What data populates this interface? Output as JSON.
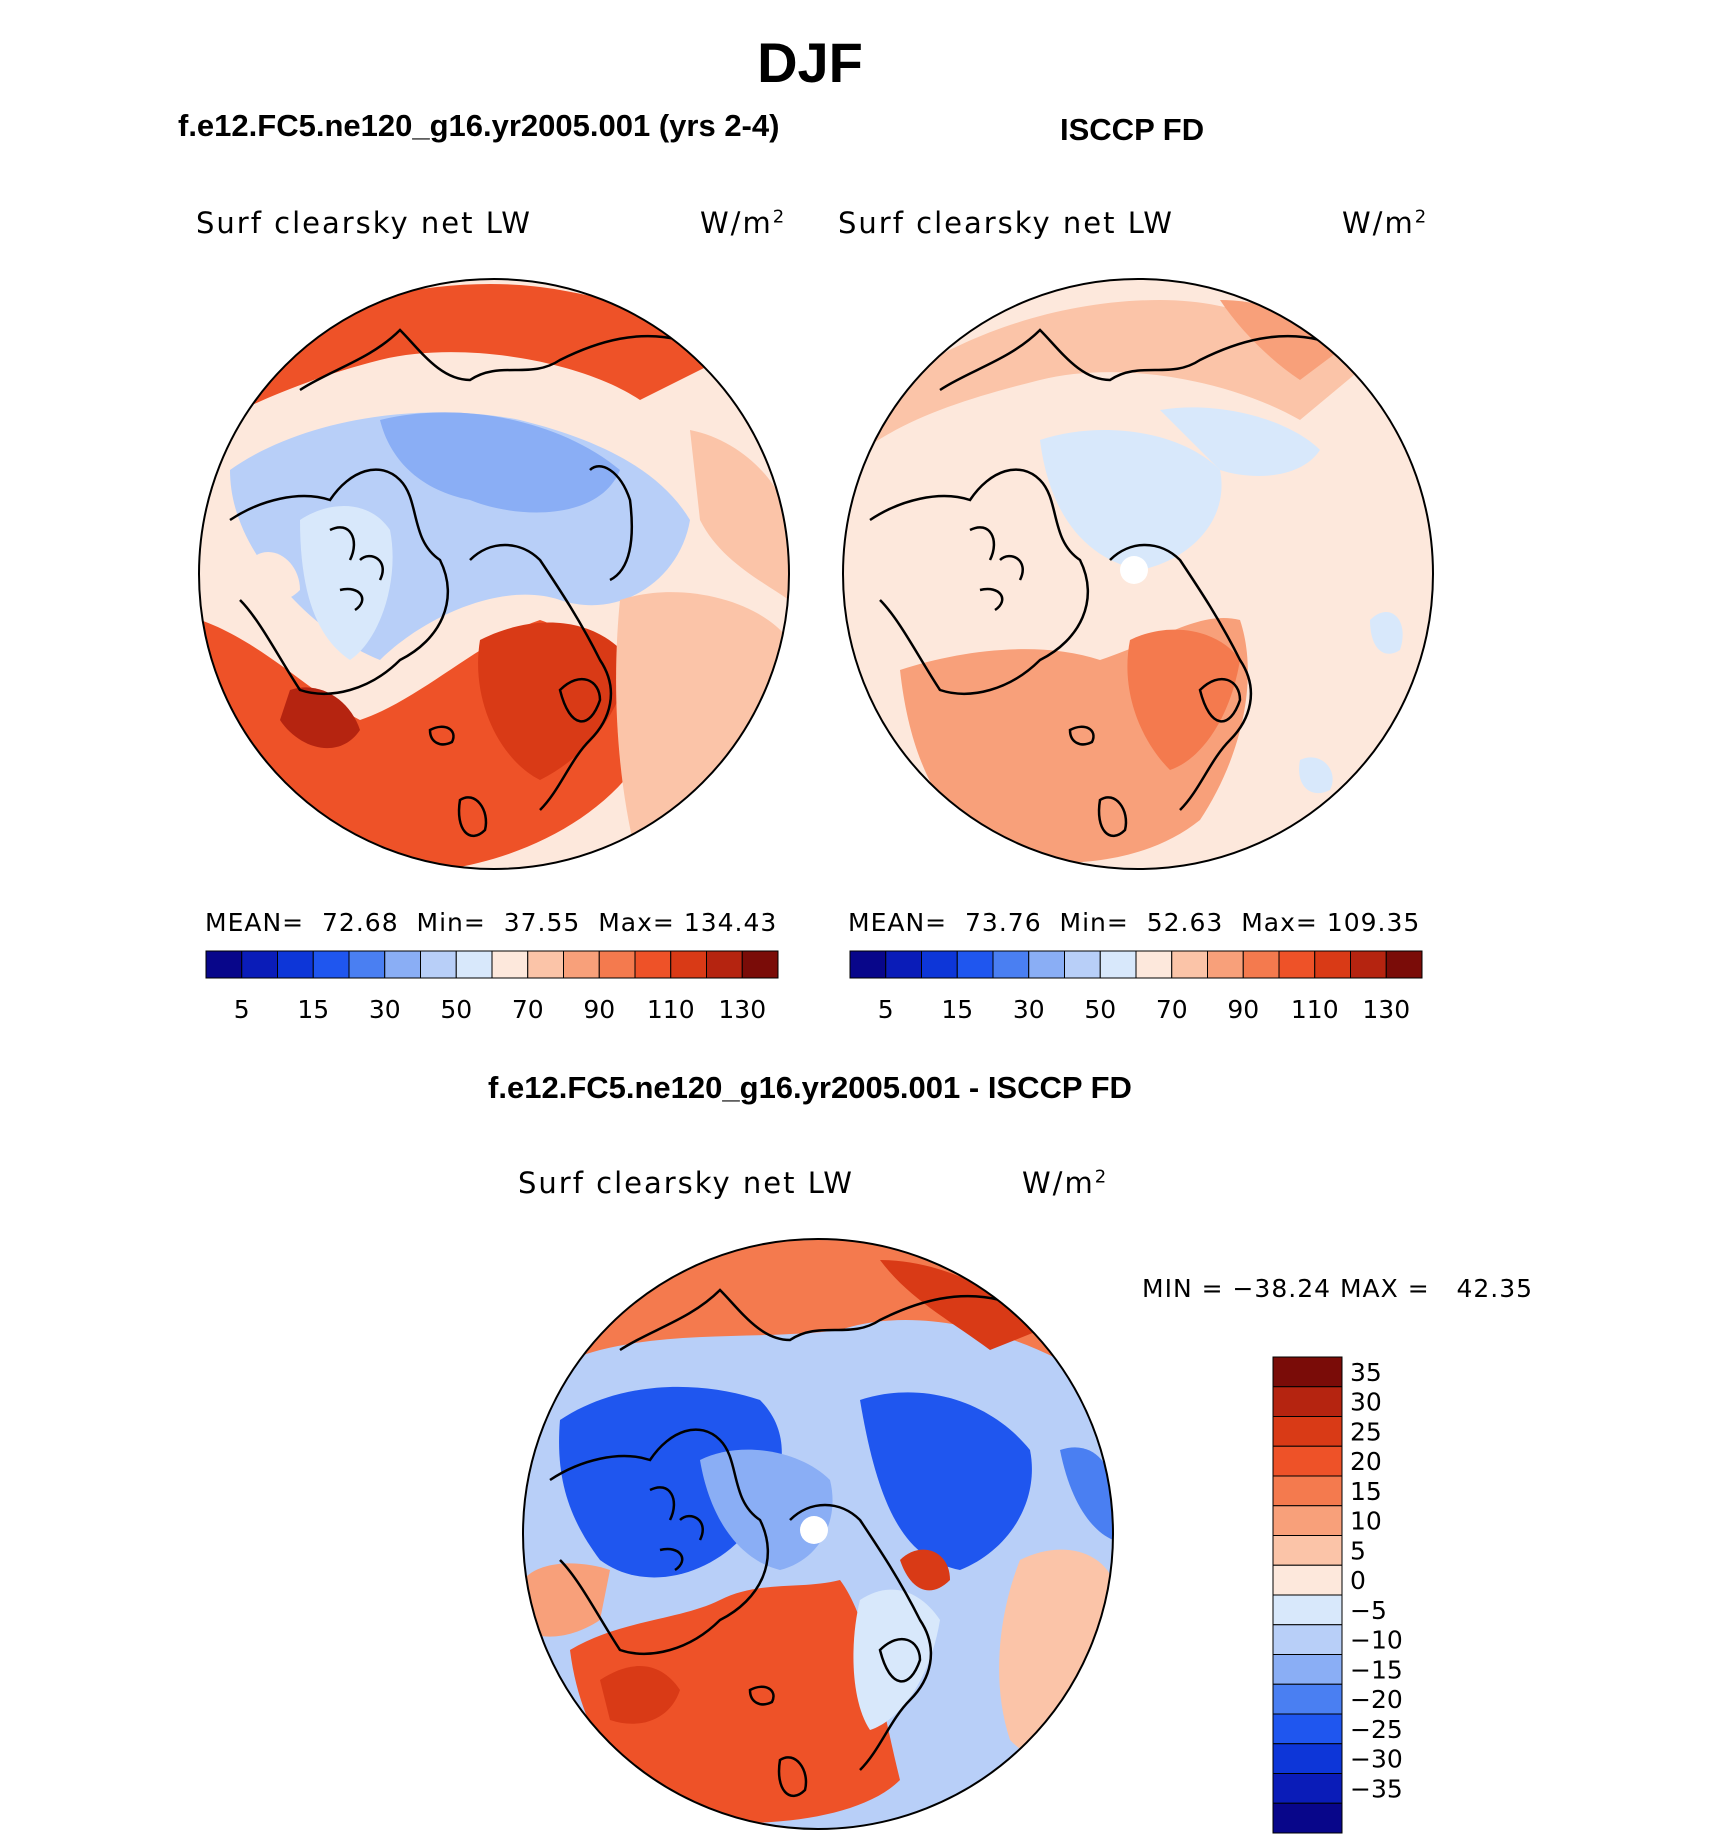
{
  "title": "DJF",
  "panels": [
    {
      "subtitle": "f.e12.FC5.ne120_g16.yr2005.001 (yrs 2-4)",
      "variable": "Surf clearsky net LW",
      "units_base": "W/m",
      "units_exp": "2",
      "stats": {
        "mean_label": "MEAN=",
        "mean": "72.68",
        "min_label": "Min=",
        "min": "37.55",
        "max_label": "Max=",
        "max": "134.43"
      }
    },
    {
      "subtitle": "ISCCP FD",
      "variable": "Surf clearsky net LW",
      "units_base": "W/m",
      "units_exp": "2",
      "stats": {
        "mean_label": "MEAN=",
        "mean": "73.76",
        "min_label": "Min=",
        "min": "52.63",
        "max_label": "Max=",
        "max": "109.35"
      }
    },
    {
      "subtitle": "f.e12.FC5.ne120_g16.yr2005.001 - ISCCP FD",
      "variable": "Surf clearsky net LW",
      "units_base": "W/m",
      "units_exp": "2",
      "stats_text": "MIN = −38.24 MAX =   42.35"
    }
  ],
  "colorbar_abs": {
    "colors": [
      "#08068a",
      "#0a1cb8",
      "#0d36d8",
      "#1f56ef",
      "#4a7ff2",
      "#8aaef5",
      "#b8cff8",
      "#d8e8fb",
      "#fde8dc",
      "#fbc4a8",
      "#f8a07a",
      "#f47a4e",
      "#ee5228",
      "#d93a16",
      "#b52410",
      "#7a0c08"
    ],
    "tick_labels": [
      "5",
      "15",
      "30",
      "50",
      "70",
      "90",
      "110",
      "130"
    ]
  },
  "colorbar_diff": {
    "colors": [
      "#7a0c08",
      "#b52410",
      "#d93a16",
      "#ee5228",
      "#f47a4e",
      "#f8a07a",
      "#fbc4a8",
      "#fde8dc",
      "#d8e8fb",
      "#b8cff8",
      "#8aaef5",
      "#4a7ff2",
      "#1f56ef",
      "#0d36d8",
      "#0a1cb8",
      "#08068a"
    ],
    "tick_labels": [
      "35",
      "30",
      "25",
      "20",
      "15",
      "10",
      "5",
      "0",
      "−5",
      "−10",
      "−15",
      "−20",
      "−25",
      "−30",
      "−35"
    ]
  },
  "chart_data": [
    {
      "type": "heatmap",
      "projection": "north polar stereographic",
      "title": "DJF",
      "subtitle": "f.e12.FC5.ne120_g16.yr2005.001 (yrs 2-4)",
      "variable": "Surf clearsky net LW",
      "units": "W/m2",
      "mean": 72.68,
      "min": 37.55,
      "max": 134.43,
      "levels": [
        5,
        15,
        30,
        50,
        70,
        90,
        110,
        130
      ]
    },
    {
      "type": "heatmap",
      "projection": "north polar stereographic",
      "title": "DJF",
      "subtitle": "ISCCP FD",
      "variable": "Surf clearsky net LW",
      "units": "W/m2",
      "mean": 73.76,
      "min": 52.63,
      "max": 109.35,
      "levels": [
        5,
        15,
        30,
        50,
        70,
        90,
        110,
        130
      ]
    },
    {
      "type": "heatmap",
      "projection": "north polar stereographic",
      "title": "DJF",
      "subtitle": "f.e12.FC5.ne120_g16.yr2005.001 - ISCCP FD",
      "variable": "Surf clearsky net LW",
      "units": "W/m2",
      "min": -38.24,
      "max": 42.35,
      "levels": [
        -35,
        -30,
        -25,
        -20,
        -15,
        -10,
        -5,
        0,
        5,
        10,
        15,
        20,
        25,
        30,
        35
      ]
    }
  ]
}
